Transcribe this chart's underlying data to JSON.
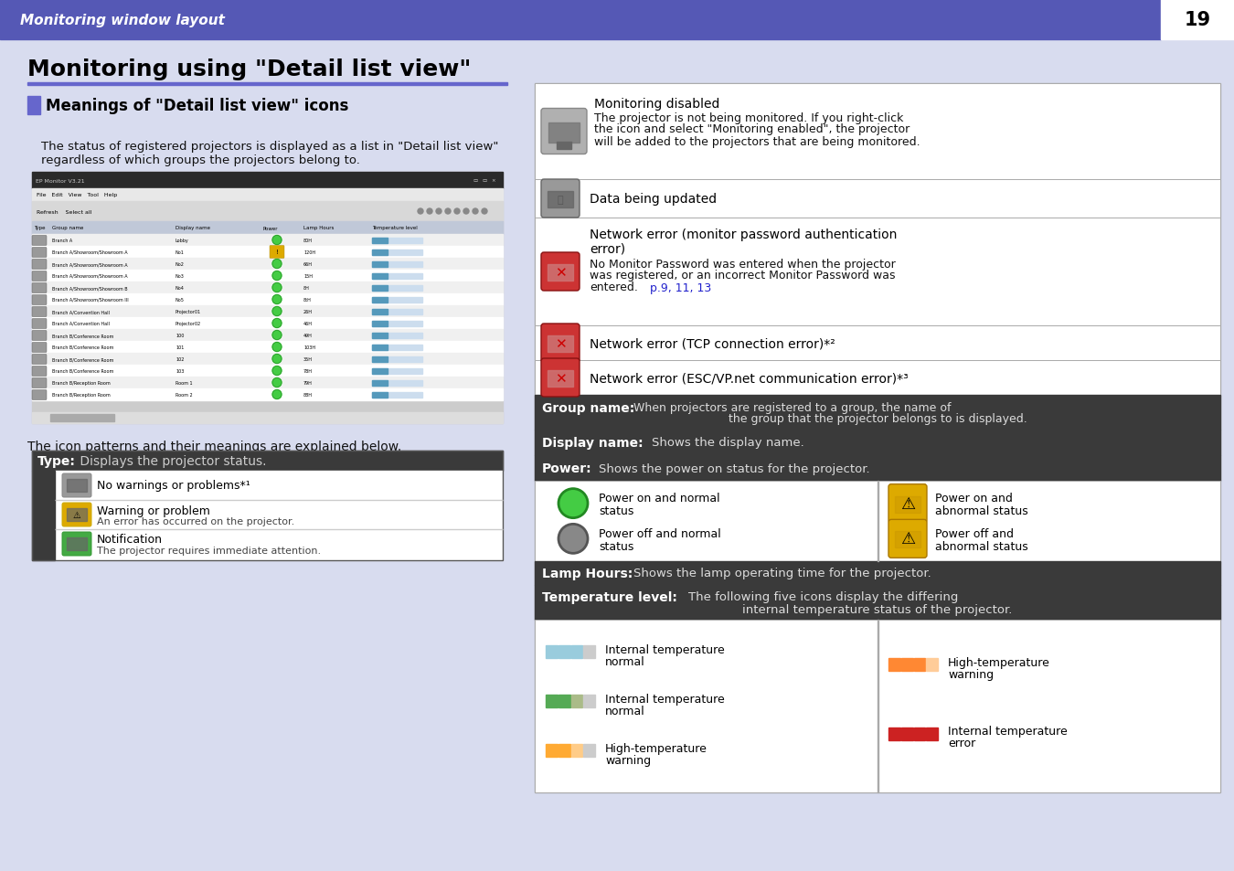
{
  "bg_color": "#d8dcef",
  "header_color": "#5558b5",
  "header_text": "Monitoring window layout",
  "header_text_color": "#ffffff",
  "page_number": "19",
  "title": "Monitoring using \"Detail list view\"",
  "title_underline_color": "#6666cc",
  "section_marker_color": "#6666cc",
  "section_title": "Meanings of \"Detail list view\" icons",
  "body_text_1a": "The status of registered projectors is displayed as a list in \"Detail list view\"",
  "body_text_1b": "regardless of which groups the projectors belong to.",
  "body_text_2": "The icon patterns and their meanings are explained below.",
  "type_header_bg": "#3a3a3a",
  "dark_row_bg": "#3a3a3a",
  "screenshot_rows": [
    [
      "Branch A",
      "Lobby",
      "80H"
    ],
    [
      "Branch A/Showroom/Showroom A",
      "No1",
      "120H"
    ],
    [
      "Branch A/Showroom/Showroom A",
      "No2",
      "66H"
    ],
    [
      "Branch A/Showroom/Showroom A",
      "No3",
      "15H"
    ],
    [
      "Branch A/Showroom/Showroom B",
      "No4",
      "8H"
    ],
    [
      "Branch A/Showroom/Showroom III",
      "No5",
      "8tH"
    ],
    [
      "Branch A/Convention Hall",
      "Projector01",
      "26H"
    ],
    [
      "Branch A/Convention Hall",
      "Projector02",
      "46H"
    ],
    [
      "Branch B/Conference Room",
      "100",
      "49H"
    ],
    [
      "Branch B/Conference Room",
      "101",
      "103H"
    ],
    [
      "Branch B/Conference Room",
      "102",
      "35H"
    ],
    [
      "Branch B/Conference Room",
      "103",
      "78H"
    ],
    [
      "Branch B/Reception Room",
      "Room 1",
      "79H"
    ],
    [
      "Branch B/Reception Room",
      "Room 2",
      "88H"
    ]
  ],
  "col_positions": [
    0,
    20,
    155,
    250,
    295,
    370
  ],
  "col_headers": [
    "Type",
    "Group name",
    "Display name",
    "Power",
    "Lamp Hours",
    "Temperature level"
  ],
  "rp_icon_rows": [
    {
      "icon_type": "gray_projector",
      "title": "Monitoring disabled",
      "lines": [
        "The projector is not being monitored. If you right-click",
        "the icon and select \"Monitoring enabled\", the projector",
        "will be added to the projectors that are being monitored."
      ],
      "link": ""
    },
    {
      "icon_type": "gray_chain",
      "title": "",
      "lines": [
        "Data being updated"
      ],
      "link": ""
    },
    {
      "icon_type": "red_x_projector",
      "title": "",
      "lines": [
        "Network error (monitor password authentication",
        "error)",
        "No Monitor Password was entered when the projector",
        "was registered, or an incorrect Monitor Password was",
        "entered."
      ],
      "link": "p.9, 11, 13"
    },
    {
      "icon_type": "red_x2",
      "title": "",
      "lines": [
        "Network error (TCP connection error)*²"
      ],
      "link": ""
    },
    {
      "icon_type": "red_x3",
      "title": "",
      "lines": [
        "Network error (ESC/VP.net communication error)*³"
      ],
      "link": ""
    }
  ],
  "power_items_left": [
    {
      "color": "#44cc44",
      "outline": "#228822",
      "type": "circle",
      "text1": "Power on and normal",
      "text2": "status"
    },
    {
      "color": "#888888",
      "outline": "#444444",
      "type": "circle",
      "text1": "Power off and normal",
      "text2": "status"
    }
  ],
  "power_items_right": [
    {
      "text1": "Power on and",
      "text2": "abnormal status"
    },
    {
      "text1": "Power off and",
      "text2": "abnormal status"
    }
  ],
  "temp_items_left": [
    {
      "bars": [
        "#99ccdd",
        "#99ccdd",
        "#99ccdd",
        "#cccccc"
      ],
      "text1": "Internal temperature",
      "text2": "normal"
    },
    {
      "bars": [
        "#55aa55",
        "#55aa55",
        "#aabb88",
        "#cccccc"
      ],
      "text1": "Internal temperature",
      "text2": "normal"
    },
    {
      "bars": [
        "#ffaa33",
        "#ffaa33",
        "#ffcc88",
        "#cccccc"
      ],
      "text1": "High-temperature",
      "text2": "warning"
    }
  ],
  "temp_items_right": [
    {
      "bars": [
        "#ff8833",
        "#ff8833",
        "#ff8833",
        "#ffcc99"
      ],
      "text1": "High-temperature",
      "text2": "warning"
    },
    {
      "bars": [
        "#cc2222",
        "#cc2222",
        "#cc2222",
        "#cc2222"
      ],
      "text1": "Internal temperature",
      "text2": "error"
    }
  ]
}
